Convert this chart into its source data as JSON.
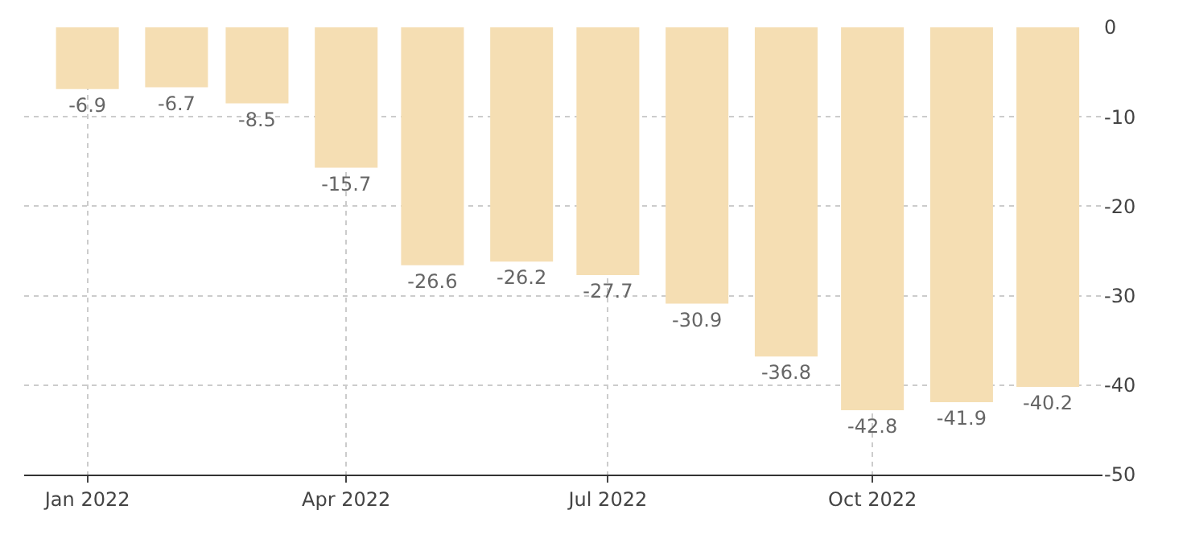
{
  "chart_data": {
    "type": "bar",
    "x": [
      "2022-01",
      "2022-02",
      "2022-03",
      "2022-04",
      "2022-05",
      "2022-06",
      "2022-07",
      "2022-08",
      "2022-09",
      "2022-10",
      "2022-11",
      "2022-12"
    ],
    "values": [
      -6.9,
      -6.7,
      -8.5,
      -15.7,
      -26.6,
      -26.2,
      -27.7,
      -30.9,
      -36.8,
      -42.8,
      -41.9,
      -40.2
    ],
    "color": "#f5deb3",
    "data_labels": true,
    "xlim": [
      "2021-12-10",
      "2022-12-20"
    ],
    "xticks": [
      {
        "value": "2022-01",
        "label": "Jan 2022"
      },
      {
        "value": "2022-04",
        "label": "Apr 2022"
      },
      {
        "value": "2022-07",
        "label": "Jul 2022"
      },
      {
        "value": "2022-10",
        "label": "Oct 2022"
      }
    ],
    "ylim": [
      -50,
      0
    ],
    "yticks": [
      0,
      -10,
      -20,
      -30,
      -40,
      -50
    ],
    "grid": true,
    "legend": false
  }
}
